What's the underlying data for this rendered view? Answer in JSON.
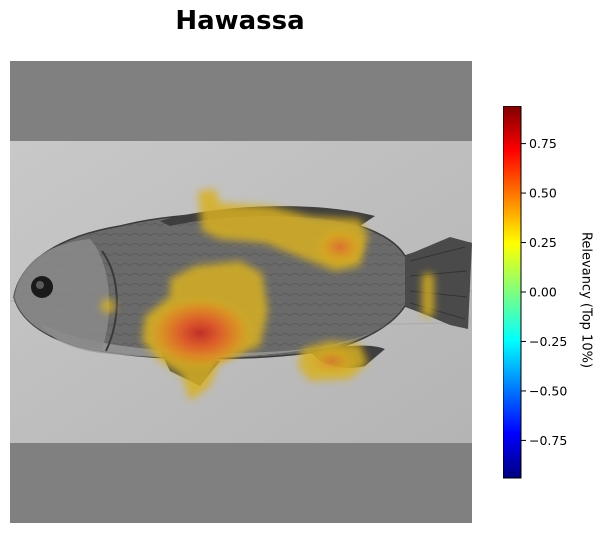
{
  "title": "Hawassa",
  "colorbar": {
    "label": "Relevancy (Top 10%)",
    "ticks": [
      "0.75",
      "0.50",
      "0.25",
      "0.00",
      "−0.25",
      "−0.50",
      "−0.75"
    ],
    "tick_values": [
      0.75,
      0.5,
      0.25,
      0.0,
      -0.25,
      -0.5,
      -0.75
    ],
    "range": [
      -0.94,
      0.94
    ],
    "colormap": "jet"
  },
  "image": {
    "subject": "fish-photograph-grayscale",
    "overlay": "relevancy-heatmap"
  }
}
